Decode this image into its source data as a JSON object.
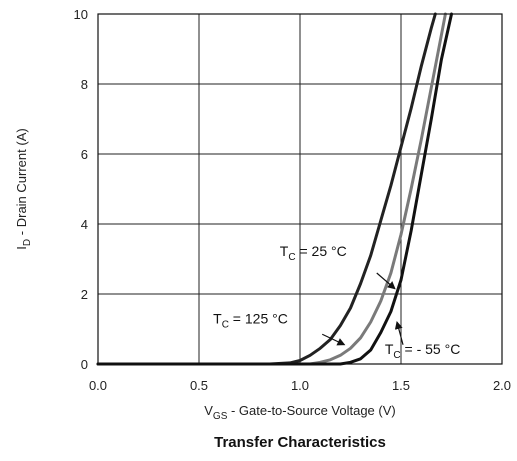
{
  "chart_data": {
    "type": "line",
    "title": "Transfer Characteristics",
    "xlabel": {
      "main": "V",
      "sub": "GS",
      "rest": " - Gate-to-Source Voltage (V)"
    },
    "ylabel": {
      "main": "I",
      "sub": "D",
      "rest": " - Drain Current (A)"
    },
    "xlim": [
      0,
      2.0
    ],
    "ylim": [
      0,
      10
    ],
    "xticks": [
      "0.0",
      "0.5",
      "1.0",
      "1.5",
      "2.0"
    ],
    "yticks": [
      "0",
      "2",
      "4",
      "6",
      "8",
      "10"
    ],
    "grid": true,
    "series": [
      {
        "name": "T_C = 125 °C",
        "color": "#222222",
        "x": [
          0.0,
          0.85,
          0.95,
          1.0,
          1.05,
          1.1,
          1.15,
          1.2,
          1.25,
          1.3,
          1.35,
          1.4,
          1.45,
          1.5,
          1.55,
          1.6,
          1.65,
          1.67
        ],
        "y": [
          0.0,
          0.0,
          0.03,
          0.1,
          0.25,
          0.45,
          0.7,
          1.1,
          1.6,
          2.3,
          3.1,
          4.1,
          5.1,
          6.2,
          7.3,
          8.5,
          9.6,
          10.0
        ]
      },
      {
        "name": "T_C = 25 °C",
        "color": "#7a7a7a",
        "x": [
          0.0,
          1.05,
          1.1,
          1.15,
          1.2,
          1.25,
          1.3,
          1.35,
          1.4,
          1.45,
          1.5,
          1.55,
          1.6,
          1.65,
          1.7,
          1.72
        ],
        "y": [
          0.0,
          0.0,
          0.05,
          0.12,
          0.25,
          0.45,
          0.75,
          1.2,
          1.8,
          2.6,
          3.7,
          5.0,
          6.4,
          7.9,
          9.4,
          10.0
        ]
      },
      {
        "name": "T_C = - 55 °C",
        "color": "#111111",
        "x": [
          0.0,
          1.2,
          1.25,
          1.3,
          1.35,
          1.4,
          1.45,
          1.5,
          1.55,
          1.6,
          1.65,
          1.7,
          1.75
        ],
        "y": [
          0.0,
          0.0,
          0.05,
          0.15,
          0.4,
          0.9,
          1.5,
          2.4,
          3.8,
          5.4,
          7.0,
          8.7,
          10.0
        ]
      }
    ],
    "annotations": [
      {
        "main": "T",
        "sub": "C",
        "rest": " = 25 °C",
        "text_xy": [
          0.9,
          3.08
        ],
        "arrow_from": [
          1.38,
          2.6
        ],
        "arrow_to": [
          1.47,
          2.15
        ]
      },
      {
        "main": "T",
        "sub": "C",
        "rest": " = 125 °C",
        "text_xy": [
          0.57,
          1.16
        ],
        "arrow_from": [
          1.11,
          0.85
        ],
        "arrow_to": [
          1.22,
          0.55
        ]
      },
      {
        "main": "T",
        "sub": "C",
        "rest": " = - 55 °C",
        "text_xy": [
          1.42,
          0.28
        ],
        "arrow_from": [
          1.51,
          0.55
        ],
        "arrow_to": [
          1.48,
          1.2
        ]
      }
    ]
  }
}
